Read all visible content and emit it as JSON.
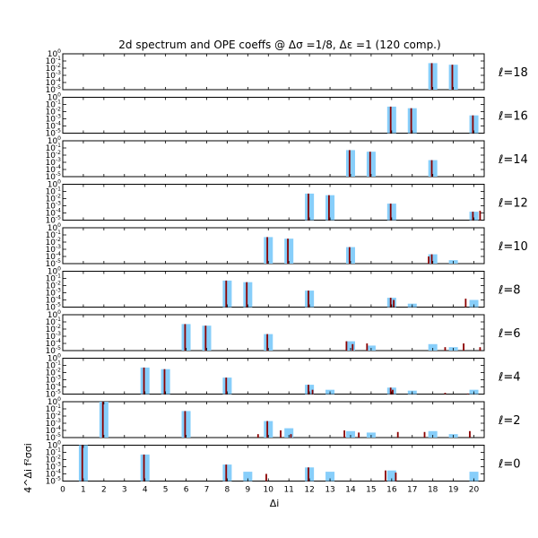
{
  "chart_data": {
    "type": "bar",
    "title": "2d spectrum and OPE coeffs @ Δσ =1/8, Δε =1 (120 comp.)",
    "xlabel": "Δi",
    "ylabel": "4^Δi f²σσi",
    "xlim": [
      0,
      20.5
    ],
    "xticks": [
      "0",
      "1",
      "2",
      "3",
      "4",
      "5",
      "6",
      "7",
      "8",
      "9",
      "10",
      "11",
      "12",
      "13",
      "14",
      "15",
      "16",
      "17",
      "18",
      "19",
      "20"
    ],
    "yscale": "log",
    "ylim_log10": [
      -5,
      0
    ],
    "ytick_labels": [
      "10^0",
      "10^-1",
      "10^-2",
      "10^-3",
      "10^-4",
      "10^-5"
    ],
    "legend": "none",
    "bar_colors": {
      "exact": "#87cefa",
      "numerical": "#8b0000"
    },
    "panels": [
      {
        "label": "ℓ=18",
        "exact": [
          [
            18,
            0.05
          ],
          [
            19,
            0.03
          ]
        ],
        "numerical": [
          [
            17.95,
            0.05
          ],
          [
            18.95,
            0.03
          ]
        ]
      },
      {
        "label": "ℓ=16",
        "exact": [
          [
            16,
            0.05
          ],
          [
            17,
            0.03
          ],
          [
            20,
            0.003
          ]
        ],
        "numerical": [
          [
            15.95,
            0.05
          ],
          [
            16.95,
            0.03
          ],
          [
            19.95,
            0.003
          ]
        ]
      },
      {
        "label": "ℓ=14",
        "exact": [
          [
            14,
            0.05
          ],
          [
            15,
            0.03
          ],
          [
            18,
            0.002
          ]
        ],
        "numerical": [
          [
            13.95,
            0.05
          ],
          [
            14.95,
            0.03
          ],
          [
            17.95,
            0.002
          ]
        ]
      },
      {
        "label": "ℓ=12",
        "exact": [
          [
            12,
            0.05
          ],
          [
            13,
            0.03
          ],
          [
            16,
            0.002
          ],
          [
            20,
            0.00015
          ]
        ],
        "numerical": [
          [
            11.95,
            0.05
          ],
          [
            12.95,
            0.03
          ],
          [
            15.95,
            0.002
          ],
          [
            19.95,
            0.00015
          ],
          [
            20.3,
            0.0002
          ]
        ]
      },
      {
        "label": "ℓ=10",
        "exact": [
          [
            10,
            0.05
          ],
          [
            11,
            0.03
          ],
          [
            14,
            0.002
          ],
          [
            18,
            0.0002
          ],
          [
            19,
            3e-05
          ]
        ],
        "numerical": [
          [
            9.95,
            0.05
          ],
          [
            10.95,
            0.03
          ],
          [
            13.95,
            0.002
          ],
          [
            17.95,
            0.0002
          ],
          [
            17.8,
            0.0001
          ]
        ]
      },
      {
        "label": "ℓ=8",
        "exact": [
          [
            8,
            0.05
          ],
          [
            9,
            0.03
          ],
          [
            12,
            0.002
          ],
          [
            16,
            0.0002
          ],
          [
            17,
            3e-05
          ],
          [
            20,
            0.0001
          ]
        ],
        "numerical": [
          [
            7.95,
            0.05
          ],
          [
            8.95,
            0.03
          ],
          [
            11.95,
            0.002
          ],
          [
            15.95,
            0.0002
          ],
          [
            16.1,
            0.0001
          ],
          [
            19.6,
            0.00015
          ]
        ]
      },
      {
        "label": "ℓ=6",
        "exact": [
          [
            6,
            0.05
          ],
          [
            7,
            0.03
          ],
          [
            10,
            0.002
          ],
          [
            14,
            0.0002
          ],
          [
            15,
            5e-05
          ],
          [
            18,
            8e-05
          ],
          [
            19,
            3e-05
          ]
        ],
        "numerical": [
          [
            5.95,
            0.05
          ],
          [
            6.95,
            0.03
          ],
          [
            9.95,
            0.002
          ],
          [
            13.8,
            0.0002
          ],
          [
            14.1,
            8e-05
          ],
          [
            14.8,
            0.0001
          ],
          [
            16.2,
            1e-05
          ],
          [
            18.6,
            3e-05
          ],
          [
            19.5,
            0.0001
          ],
          [
            20.3,
            3e-05
          ]
        ]
      },
      {
        "label": "ℓ=4",
        "exact": [
          [
            4,
            0.05
          ],
          [
            5,
            0.03
          ],
          [
            8,
            0.002
          ],
          [
            12,
            0.0002
          ],
          [
            13,
            4e-05
          ],
          [
            16,
            8e-05
          ],
          [
            17,
            3e-05
          ],
          [
            20,
            4e-05
          ]
        ],
        "numerical": [
          [
            3.95,
            0.05
          ],
          [
            4.95,
            0.03
          ],
          [
            7.95,
            0.002
          ],
          [
            11.95,
            0.0002
          ],
          [
            12.15,
            4e-05
          ],
          [
            15.95,
            8e-05
          ],
          [
            16.05,
            4e-05
          ],
          [
            18.6,
            1.5e-05
          ],
          [
            19.7,
            1.2e-05
          ]
        ]
      },
      {
        "label": "ℓ=2",
        "exact": [
          [
            2,
            1.0
          ],
          [
            6,
            0.05
          ],
          [
            10,
            0.002
          ],
          [
            11,
            0.0002
          ],
          [
            14,
            8e-05
          ],
          [
            15,
            5e-05
          ],
          [
            18,
            8e-05
          ],
          [
            19,
            3e-05
          ]
        ],
        "numerical": [
          [
            1.95,
            1.0
          ],
          [
            5.95,
            0.05
          ],
          [
            9.5,
            3e-05
          ],
          [
            9.95,
            0.002
          ],
          [
            10.6,
            0.0001
          ],
          [
            11.1,
            3e-05
          ],
          [
            12.9,
            1e-05
          ],
          [
            13.7,
            0.0001
          ],
          [
            14.4,
            5e-05
          ],
          [
            16.3,
            6e-05
          ],
          [
            17.6,
            6e-05
          ],
          [
            19.8,
            8e-05
          ]
        ]
      },
      {
        "label": "ℓ=0",
        "exact": [
          [
            1,
            1.0
          ],
          [
            4,
            0.05
          ],
          [
            8,
            0.002
          ],
          [
            9,
            0.0002
          ],
          [
            12,
            0.0008
          ],
          [
            13,
            0.0002
          ],
          [
            16,
            0.0003
          ],
          [
            20,
            0.0002
          ]
        ],
        "numerical": [
          [
            0.95,
            1.0
          ],
          [
            3.95,
            0.05
          ],
          [
            7.95,
            0.002
          ],
          [
            9.9,
            0.0001
          ],
          [
            11.95,
            0.0008
          ],
          [
            15.7,
            0.0003
          ],
          [
            16.2,
            0.00015
          ]
        ]
      }
    ]
  }
}
